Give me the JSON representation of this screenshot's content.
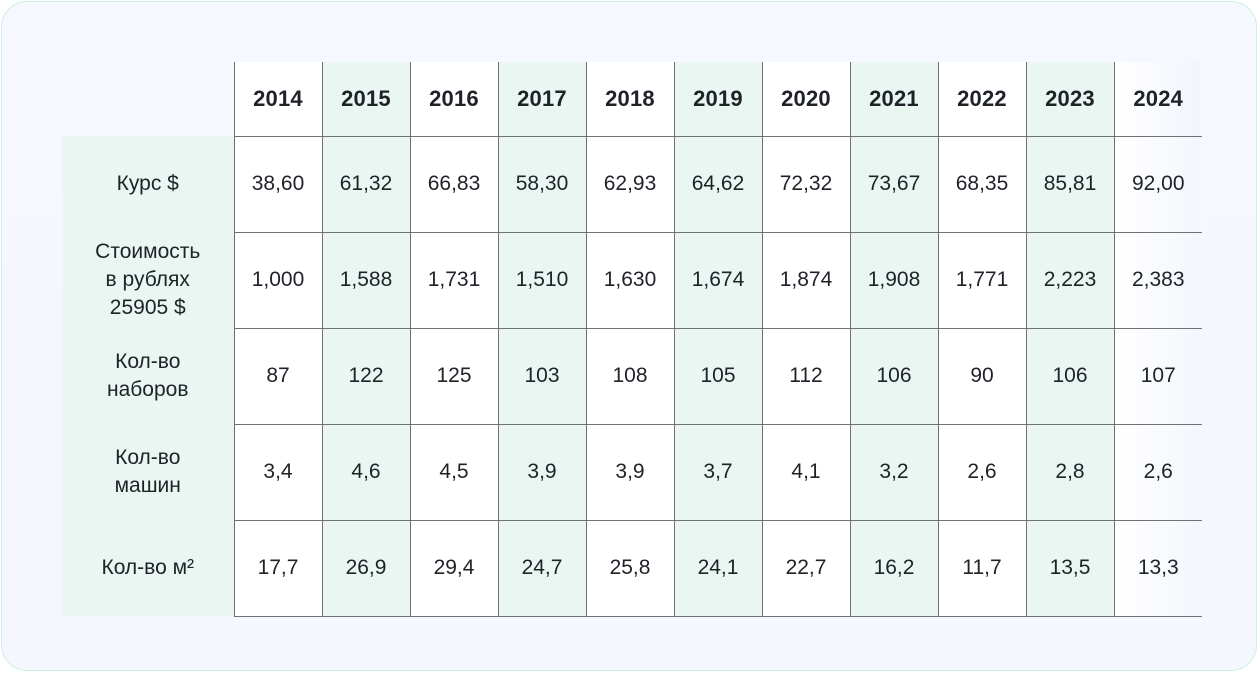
{
  "years": [
    "2014",
    "2015",
    "2016",
    "2017",
    "2018",
    "2019",
    "2020",
    "2021",
    "2022",
    "2023",
    "2024"
  ],
  "rows": [
    {
      "label": "Курс $",
      "values": [
        "38,60",
        "61,32",
        "66,83",
        "58,30",
        "62,93",
        "64,62",
        "72,32",
        "73,67",
        "68,35",
        "85,81",
        "92,00"
      ]
    },
    {
      "label": "Стоимость\nв рублях\n25905 $",
      "values": [
        "1,000",
        "1,588",
        "1,731",
        "1,510",
        "1,630",
        "1,674",
        "1,874",
        "1,908",
        "1,771",
        "2,223",
        "2,383"
      ]
    },
    {
      "label": "Кол-во\nнаборов",
      "values": [
        "87",
        "122",
        "125",
        "103",
        "108",
        "105",
        "112",
        "106",
        "90",
        "106",
        "107"
      ]
    },
    {
      "label": "Кол-во\nмашин",
      "values": [
        "3,4",
        "4,6",
        "4,5",
        "3,9",
        "3,9",
        "3,7",
        "4,1",
        "3,2",
        "2,6",
        "2,8",
        "2,6"
      ]
    },
    {
      "label": "Кол-во м²",
      "values": [
        "17,7",
        "26,9",
        "29,4",
        "24,7",
        "25,8",
        "24,1",
        "22,7",
        "16,2",
        "11,7",
        "13,5",
        "13,3"
      ]
    }
  ],
  "colors": {
    "accent_green": "#e9f6f1",
    "border": "#6f7175",
    "card_border": "#cfeee5",
    "card_background": "#f5f8fe",
    "text": "#1f2228"
  }
}
